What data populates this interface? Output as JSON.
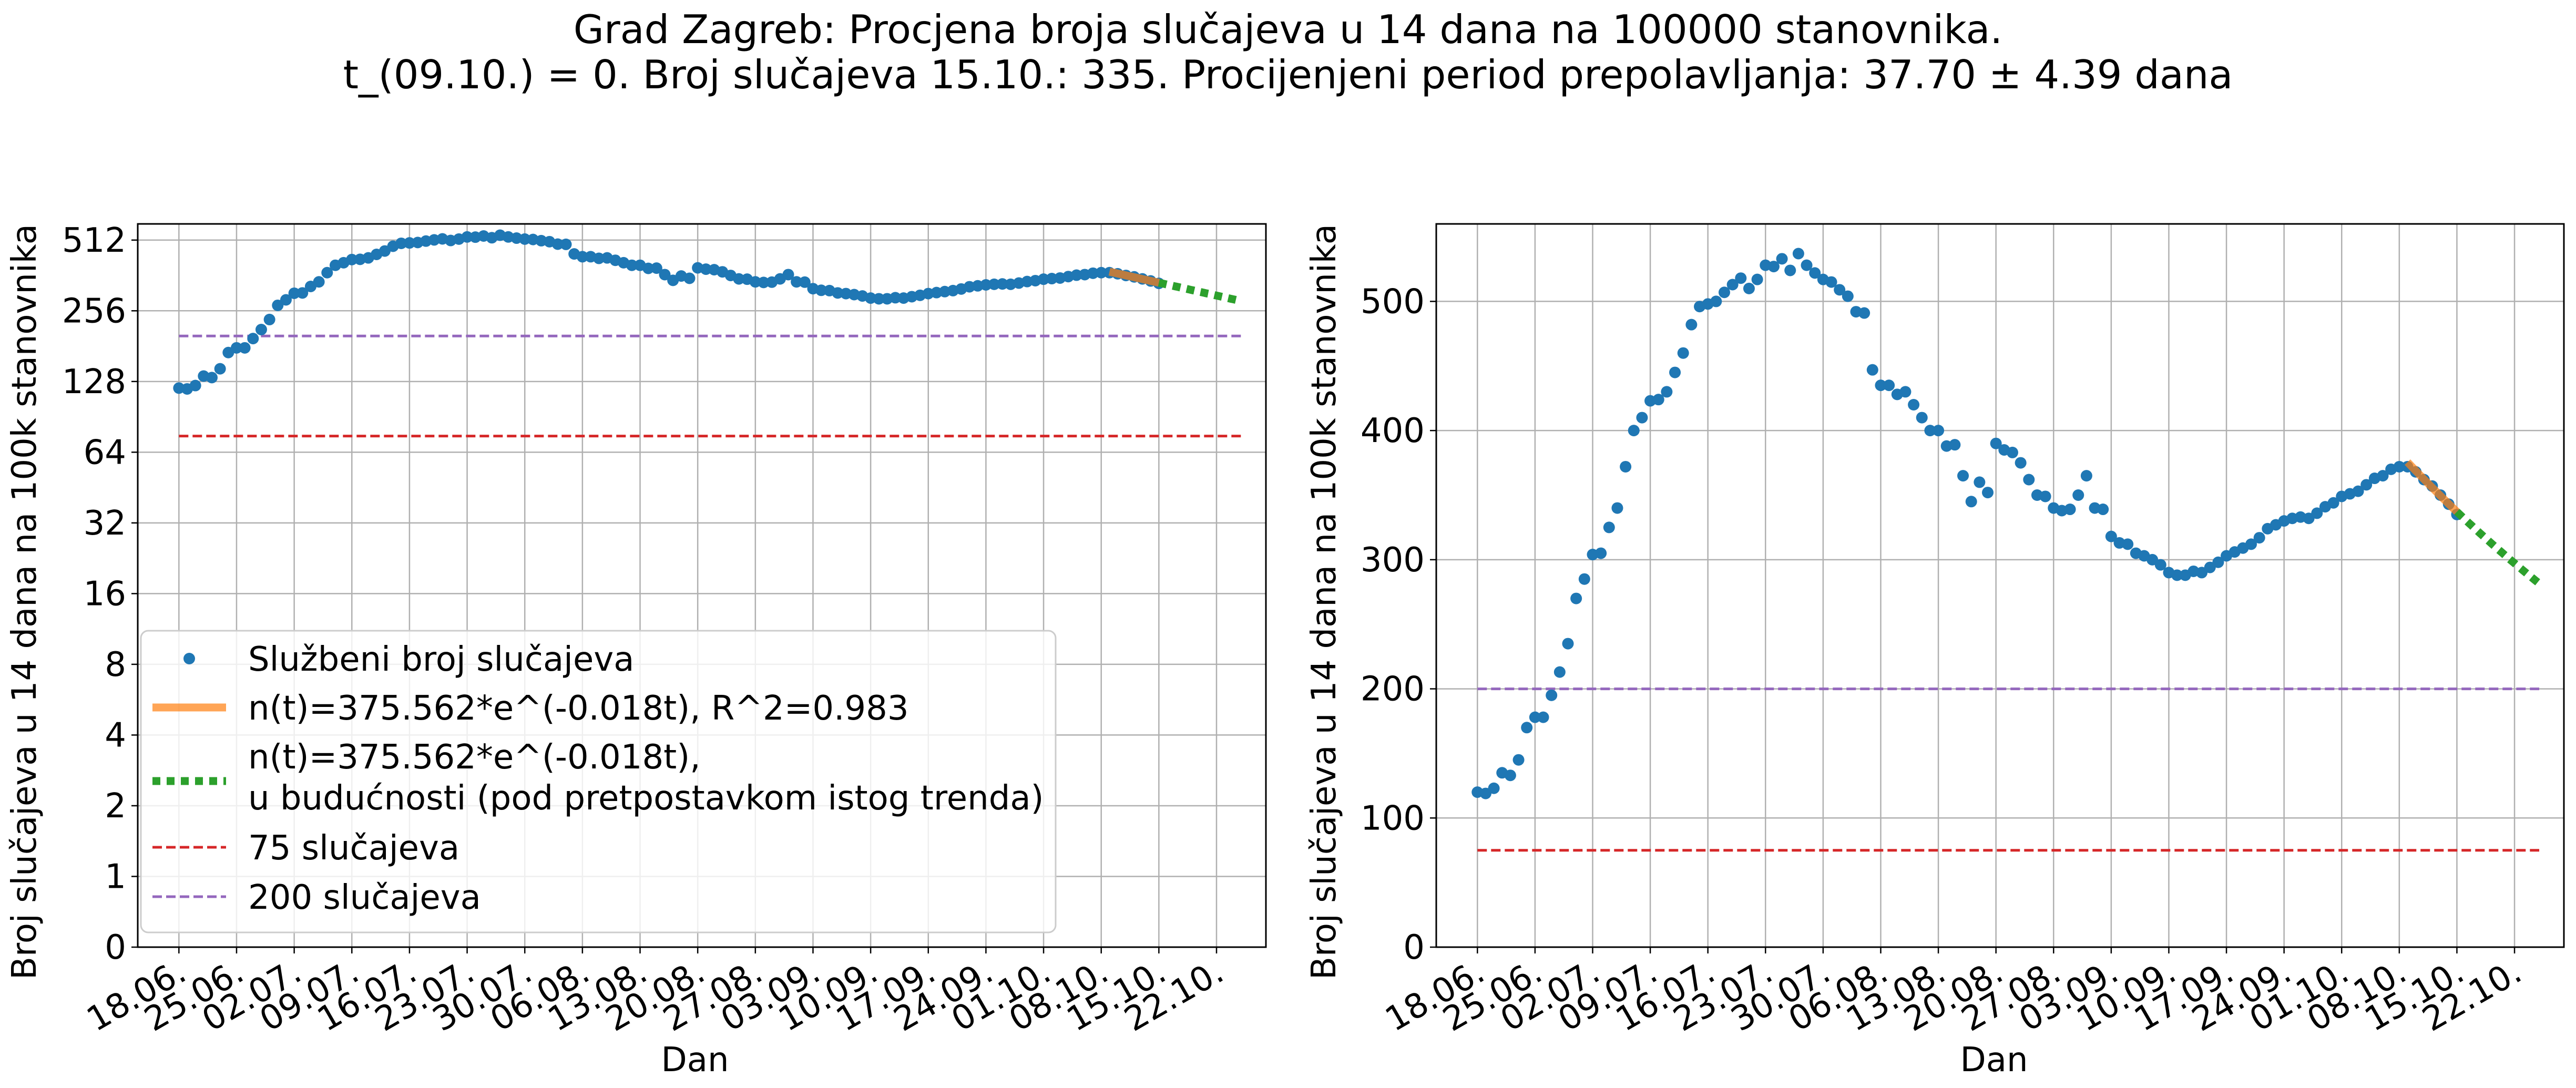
{
  "figure": {
    "title_line1": "Grad Zagreb: Procjena broja slučajeva u 14 dana na 100000 stanovnika.",
    "title_line2": "t_(09.10.) = 0. Broj slučajeva 15.10.: 335. Procijenjeni period prepolavljanja: 37.70 ± 4.39 dana"
  },
  "colors": {
    "points": "#1f77b4",
    "fit": "#ff7f0e",
    "forecast": "#2ca02c",
    "threshold_75": "#d62728",
    "threshold_200": "#9467bd",
    "grid": "#b0b0b0"
  },
  "chart_data": [
    {
      "type": "scatter",
      "panel": "left",
      "y_scale": "symlog (base 2)",
      "xlabel": "Dan",
      "ylabel": "Broj slučajeva u 14 dana na 100k stanovnika",
      "xlim": [
        "2020-06-13",
        "2020-10-28"
      ],
      "ylim": [
        0,
        600
      ],
      "x_ticks": [
        "18.06.",
        "25.06.",
        "02.07.",
        "09.07.",
        "16.07.",
        "23.07.",
        "30.07.",
        "06.08.",
        "13.08.",
        "20.08.",
        "27.08.",
        "03.09.",
        "10.09.",
        "17.09.",
        "24.09.",
        "01.10.",
        "08.10.",
        "15.10.",
        "22.10."
      ],
      "y_ticks": [
        0,
        1,
        2,
        4,
        8,
        16,
        32,
        64,
        128,
        256,
        512
      ],
      "grid": true,
      "legend_position": "lower-left"
    },
    {
      "type": "scatter",
      "panel": "right",
      "y_scale": "linear",
      "xlabel": "Dan",
      "ylabel": "Broj slučajeva u 14 dana na 100k stanovnika",
      "xlim": [
        "2020-06-13",
        "2020-10-28"
      ],
      "ylim": [
        0,
        560
      ],
      "x_ticks": [
        "18.06.",
        "25.06.",
        "02.07.",
        "09.07.",
        "16.07.",
        "23.07.",
        "30.07.",
        "06.08.",
        "13.08.",
        "20.08.",
        "27.08.",
        "03.09.",
        "10.09.",
        "17.09.",
        "24.09.",
        "01.10.",
        "08.10.",
        "15.10.",
        "22.10."
      ],
      "y_ticks": [
        0,
        100,
        200,
        300,
        400,
        500
      ],
      "grid": true
    }
  ],
  "series": {
    "observed": {
      "name": "Službeni broj slučajeva",
      "start_date": "2020-06-18",
      "values": [
        120,
        119,
        123,
        135,
        133,
        145,
        170,
        178,
        178,
        195,
        213,
        235,
        270,
        285,
        304,
        305,
        325,
        340,
        372,
        400,
        410,
        423,
        424,
        430,
        445,
        460,
        482,
        496,
        498,
        500,
        507,
        513,
        518,
        510,
        517,
        528,
        527,
        533,
        524,
        537,
        528,
        522,
        517,
        515,
        509,
        504,
        492,
        491,
        447,
        435,
        435,
        428,
        430,
        420,
        410,
        400,
        400,
        388,
        389,
        365,
        345,
        360,
        352,
        390,
        385,
        383,
        375,
        362,
        350,
        349,
        340,
        338,
        339,
        350,
        365,
        340,
        339,
        318,
        313,
        312,
        305,
        303,
        300,
        296,
        290,
        288,
        288,
        291,
        290,
        294,
        298,
        303,
        306,
        309,
        312,
        317,
        324,
        327,
        330,
        332,
        333,
        332,
        336,
        341,
        344,
        349,
        351,
        353,
        358,
        363,
        365,
        370,
        372,
        372,
        368,
        362,
        357,
        350,
        343,
        335
      ]
    },
    "fit": {
      "name": "n(t)=375.562*e^(-0.018t), R^2=0.983",
      "amplitude": 375.562,
      "rate": -0.018,
      "t0_date": "2020-10-09",
      "end_date": "2020-10-15"
    },
    "forecast": {
      "name_line1": "n(t)=375.562*e^(-0.018t),",
      "name_line2": "u budućnosti (pod pretpostavkom istog trenda)",
      "start_date": "2020-10-15",
      "end_date": "2020-10-25"
    },
    "threshold_75": {
      "name": "75 slučajeva",
      "value": 75,
      "start_date": "2020-06-18",
      "end_date": "2020-10-25"
    },
    "threshold_200": {
      "name": "200 slučajeva",
      "value": 200,
      "start_date": "2020-06-18",
      "end_date": "2020-10-25"
    }
  }
}
